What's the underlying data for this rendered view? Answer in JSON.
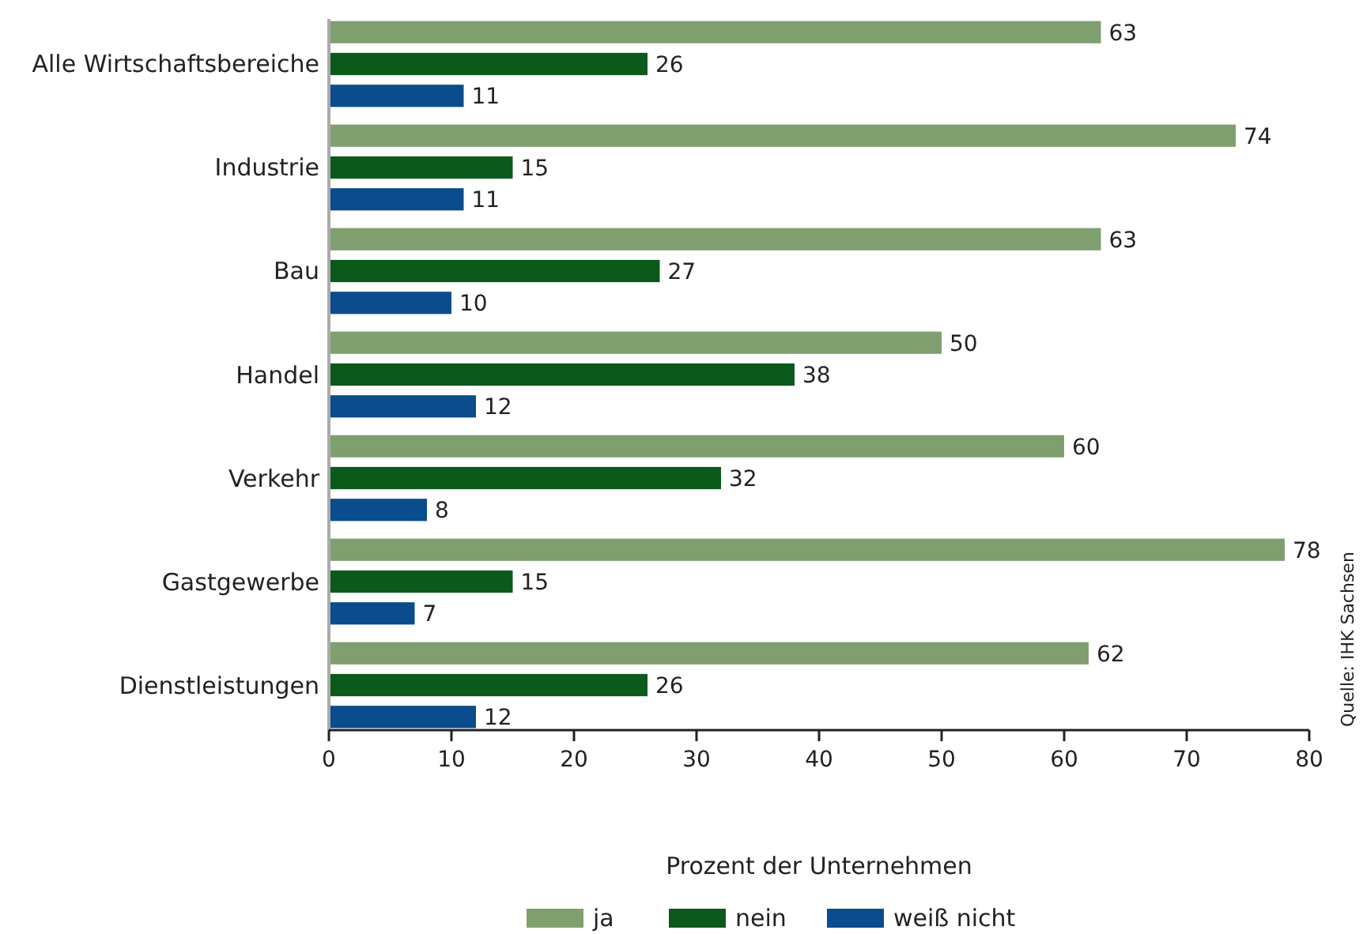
{
  "chart_data": {
    "type": "bar",
    "orientation": "horizontal",
    "xlabel": "Prozent der Unternehmen",
    "categories": [
      "Alle Wirtschaftsbereiche",
      "Industrie",
      "Bau",
      "Handel",
      "Verkehr",
      "Gastgewerbe",
      "Dienstleistungen"
    ],
    "series": [
      {
        "name": "ja",
        "color": "#7fa06e",
        "values": [
          63,
          74,
          63,
          50,
          60,
          78,
          62
        ]
      },
      {
        "name": "nein",
        "color": "#0b5a1b",
        "values": [
          26,
          15,
          27,
          38,
          32,
          15,
          26
        ]
      },
      {
        "name": "weiß nicht",
        "color": "#0a4c8c",
        "values": [
          11,
          11,
          10,
          12,
          8,
          7,
          12
        ]
      }
    ],
    "xlim": [
      0,
      80
    ],
    "xticks": [
      0,
      10,
      20,
      30,
      40,
      50,
      60,
      70,
      80
    ],
    "data_labels": true,
    "grid": false,
    "legend": "bottom",
    "annotations": [
      "Quelle: IHK Sachsen"
    ]
  }
}
